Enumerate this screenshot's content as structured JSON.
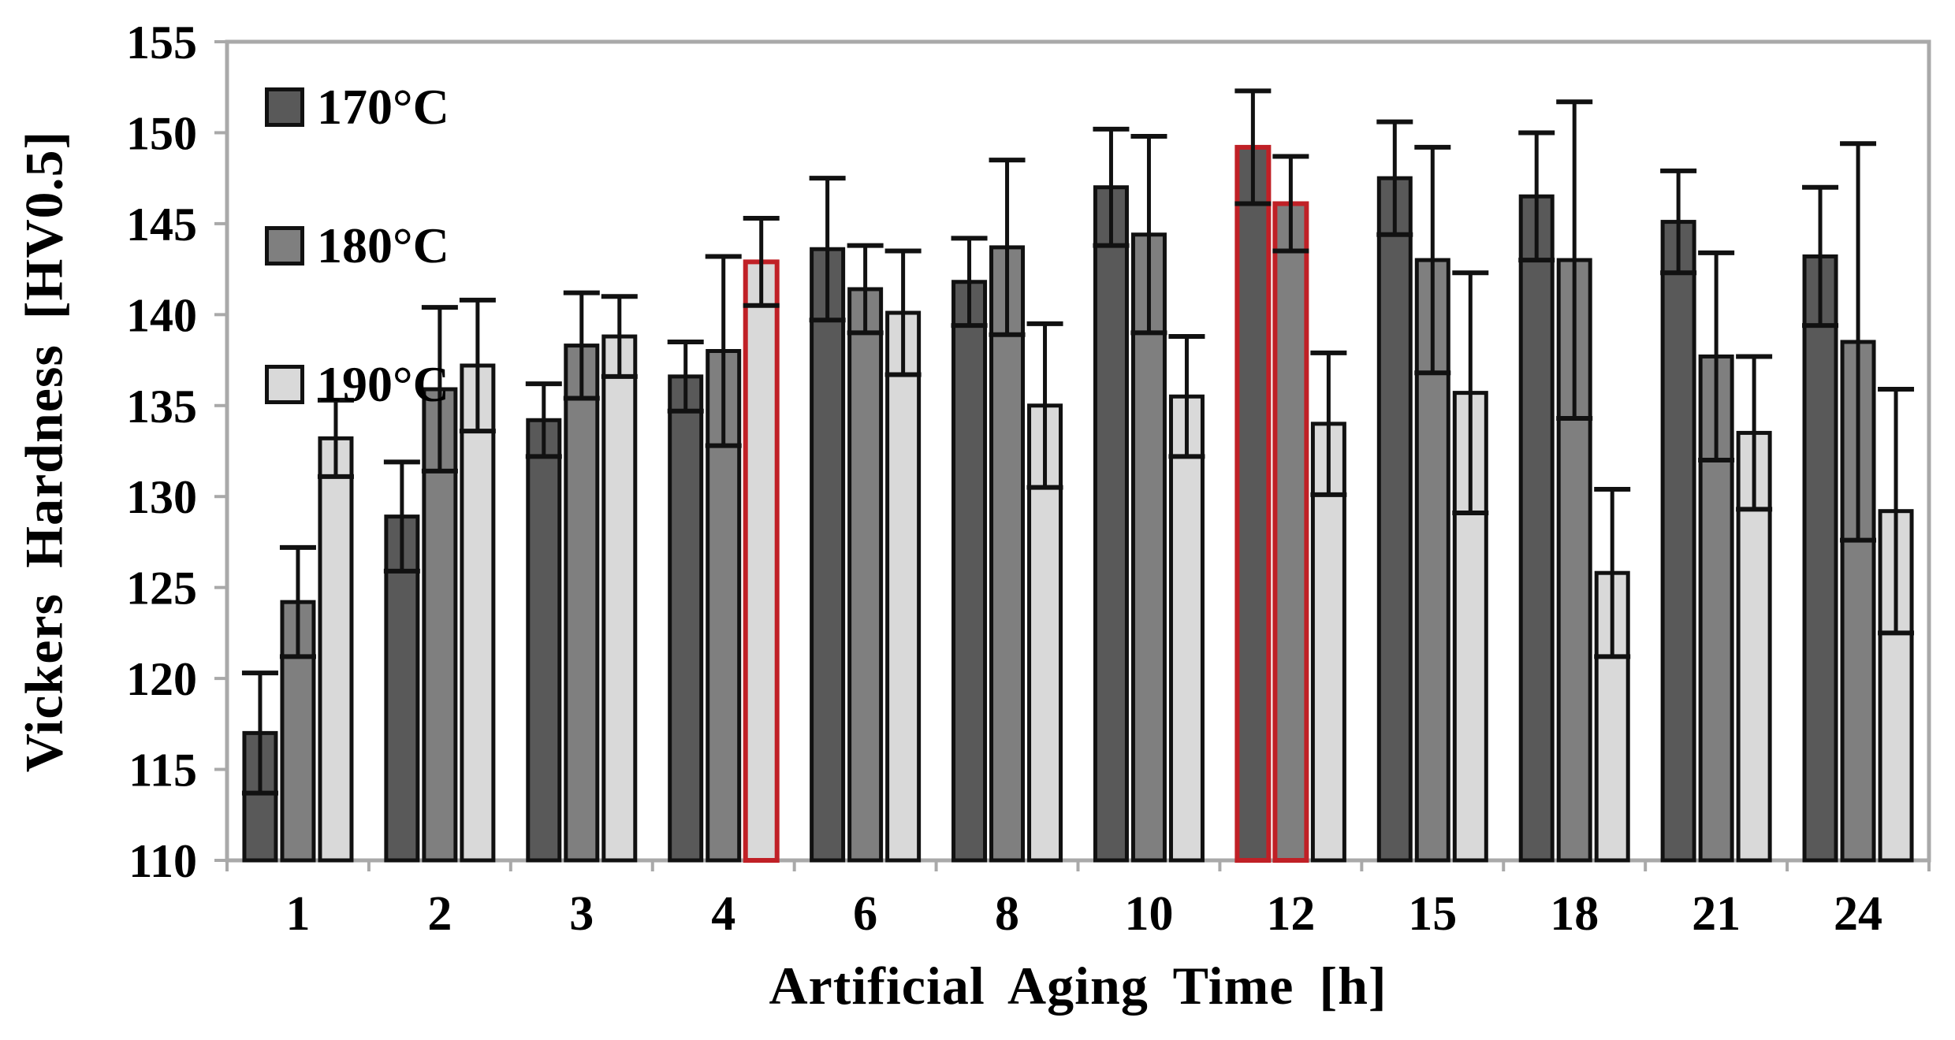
{
  "figure": {
    "kind": "scientific grouped bar chart with error bars",
    "background": "#FFFFFF"
  },
  "chart_data": {
    "type": "bar",
    "title": "",
    "xlabel": "Artificial Aging Time [h]",
    "ylabel": "Vickers Hardness [HV0.5]",
    "categories": [
      "1",
      "2",
      "3",
      "4",
      "6",
      "8",
      "10",
      "12",
      "15",
      "18",
      "21",
      "24"
    ],
    "ylim": [
      110,
      155
    ],
    "ytick_step": 5,
    "yticks": [
      110,
      115,
      120,
      125,
      130,
      135,
      140,
      145,
      150,
      155
    ],
    "grid": false,
    "legend_position": "top-left-inside",
    "error_bars": true,
    "series": [
      {
        "name": "170°C",
        "color": "#595959",
        "values": [
          117.0,
          128.9,
          134.2,
          136.6,
          143.6,
          141.8,
          147.0,
          149.2,
          147.5,
          146.5,
          145.1,
          143.2
        ],
        "errors": [
          3.3,
          3.0,
          2.0,
          1.9,
          3.9,
          2.4,
          3.2,
          3.1,
          3.1,
          3.5,
          2.8,
          3.8
        ]
      },
      {
        "name": "180°C",
        "color": "#7F7F7F",
        "values": [
          124.2,
          135.9,
          138.3,
          138.0,
          141.4,
          143.7,
          144.4,
          146.1,
          143.0,
          143.0,
          137.7,
          138.5
        ],
        "errors": [
          3.0,
          4.5,
          2.9,
          5.2,
          2.4,
          4.8,
          5.4,
          2.6,
          6.2,
          8.7,
          5.7,
          10.9
        ]
      },
      {
        "name": "190°C",
        "color": "#D9D9D9",
        "values": [
          133.2,
          137.2,
          138.8,
          142.9,
          140.1,
          135.0,
          135.5,
          134.0,
          135.7,
          125.8,
          133.5,
          129.2
        ],
        "errors": [
          2.1,
          3.6,
          2.2,
          2.4,
          3.4,
          4.5,
          3.3,
          3.9,
          6.6,
          4.6,
          4.2,
          6.7
        ]
      }
    ],
    "highlighted_bars": [
      {
        "category": "4",
        "series": "190°C"
      },
      {
        "category": "12",
        "series": "170°C"
      },
      {
        "category": "12",
        "series": "180°C"
      }
    ],
    "colors": {
      "bar_border": "#111111",
      "error_bar": "#111111",
      "frame": "#A9A9A9",
      "highlight": "#C02026",
      "text": "#000000",
      "background": "#FFFFFF"
    }
  }
}
